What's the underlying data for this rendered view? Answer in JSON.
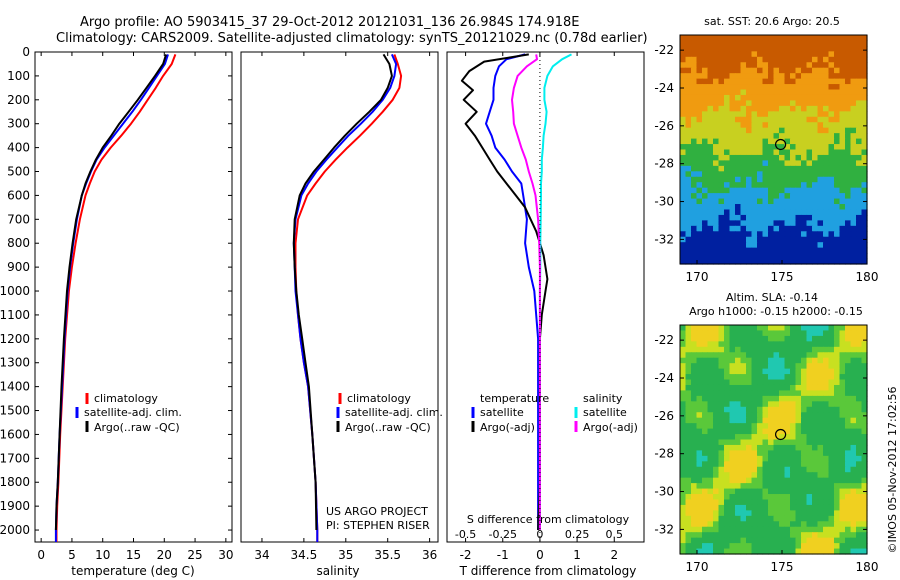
{
  "header": {
    "line1": "Argo profile: AO 5903415_37 29-Oct-2012 20121031_136 26.984S 174.918E",
    "line2": "Climatology: CARS2009. Satellite-adjusted climatology: synTS_20121029.nc (0.78d earlier)"
  },
  "credits": {
    "project": "US ARGO PROJECT",
    "pi": "PI: STEPHEN RISER",
    "side": "©IMOS 05-Nov-2012 17:02:56"
  },
  "colors": {
    "climatology": "#ff0000",
    "satellite": "#0000ff",
    "argo": "#000000",
    "sal_satellite": "#00eeee",
    "sal_argo": "#ff00ff"
  },
  "chart_data": [
    {
      "type": "line",
      "id": "temperature",
      "xlabel": "temperature (deg C)",
      "ylabel": "",
      "xlim": [
        -1,
        31
      ],
      "ylim": [
        2050,
        0
      ],
      "xticks": [
        0,
        5,
        10,
        15,
        20,
        25,
        30
      ],
      "yticks": [
        0,
        100,
        200,
        300,
        400,
        500,
        600,
        700,
        800,
        900,
        1000,
        1100,
        1200,
        1300,
        1400,
        1500,
        1600,
        1700,
        1800,
        1900,
        2000
      ],
      "legend": [
        "climatology",
        "satellite-adj. clim.",
        "Argo(..raw -QC)"
      ],
      "legend_position": "lower-center",
      "series": [
        {
          "name": "climatology",
          "color": "#ff0000",
          "y": [
            10,
            50,
            100,
            150,
            200,
            250,
            300,
            350,
            400,
            450,
            500,
            550,
            600,
            700,
            800,
            900,
            1000,
            1200,
            1400,
            1600,
            1800,
            1900,
            2000,
            2050
          ],
          "values": [
            21.8,
            21.2,
            19.8,
            18.6,
            17.3,
            16.0,
            14.6,
            13.0,
            11.3,
            9.8,
            8.7,
            7.9,
            7.2,
            6.3,
            5.6,
            5.0,
            4.5,
            3.9,
            3.5,
            3.1,
            2.8,
            2.6,
            2.5,
            2.5
          ]
        },
        {
          "name": "satellite-adj. clim.",
          "color": "#0000ff",
          "y": [
            10,
            50,
            100,
            150,
            200,
            250,
            300,
            350,
            400,
            450,
            500,
            550,
            600,
            700,
            800,
            900,
            1000,
            1200,
            1400,
            1600,
            1800,
            1900,
            2000,
            2050
          ],
          "values": [
            20.6,
            20.1,
            18.8,
            17.5,
            16.2,
            14.8,
            13.3,
            11.8,
            10.3,
            9.0,
            8.1,
            7.3,
            6.6,
            5.8,
            5.2,
            4.7,
            4.3,
            3.8,
            3.4,
            3.0,
            2.7,
            2.5,
            2.4,
            2.4
          ]
        },
        {
          "name": "Argo(..raw -QC)",
          "color": "#000000",
          "y": [
            10,
            50,
            100,
            150,
            200,
            250,
            300,
            350,
            400,
            450,
            500,
            550,
            600,
            700,
            800,
            900,
            1000,
            1200,
            1400,
            1600,
            1800,
            1900,
            2000
          ],
          "values": [
            20.3,
            19.8,
            18.5,
            17.1,
            15.7,
            14.2,
            12.7,
            11.4,
            10.0,
            8.9,
            8.0,
            7.2,
            6.6,
            5.7,
            5.1,
            4.6,
            4.2,
            3.7,
            3.3,
            3.0,
            2.7,
            2.5,
            2.4
          ]
        }
      ]
    },
    {
      "type": "line",
      "id": "salinity",
      "xlabel": "salinity",
      "ylabel": "",
      "xlim": [
        33.75,
        36.1
      ],
      "ylim": [
        2050,
        0
      ],
      "xticks": [
        34,
        34.5,
        35,
        35.5,
        36
      ],
      "legend": [
        "climatology",
        "satellite-adj. clim.",
        "Argo(..raw -QC)"
      ],
      "legend_position": "lower-center",
      "series": [
        {
          "name": "climatology",
          "color": "#ff0000",
          "y": [
            10,
            50,
            100,
            150,
            200,
            250,
            300,
            350,
            400,
            450,
            500,
            550,
            600,
            700,
            800,
            900,
            1000,
            1100,
            1200,
            1300,
            1400,
            1600,
            1800,
            2000,
            2050
          ],
          "values": [
            35.58,
            35.62,
            35.66,
            35.64,
            35.56,
            35.44,
            35.31,
            35.17,
            35.02,
            34.88,
            34.75,
            34.64,
            34.54,
            34.43,
            34.4,
            34.4,
            34.41,
            34.43,
            34.46,
            34.5,
            34.55,
            34.6,
            34.64,
            34.66,
            34.66
          ]
        },
        {
          "name": "satellite-adj. clim.",
          "color": "#0000ff",
          "y": [
            10,
            50,
            100,
            150,
            200,
            250,
            300,
            350,
            400,
            450,
            500,
            550,
            600,
            700,
            800,
            900,
            1000,
            1100,
            1200,
            1300,
            1400,
            1600,
            1800,
            2000,
            2050
          ],
          "values": [
            35.55,
            35.6,
            35.58,
            35.53,
            35.44,
            35.32,
            35.18,
            35.03,
            34.9,
            34.77,
            34.65,
            34.55,
            34.47,
            34.4,
            34.38,
            34.39,
            34.4,
            34.43,
            34.46,
            34.5,
            34.55,
            34.6,
            34.64,
            34.66,
            34.66
          ]
        },
        {
          "name": "Argo(..raw -QC)",
          "color": "#000000",
          "y": [
            10,
            50,
            100,
            150,
            200,
            250,
            300,
            350,
            400,
            450,
            500,
            550,
            600,
            700,
            800,
            900,
            1000,
            1100,
            1200,
            1300,
            1400,
            1600,
            1800,
            2000
          ],
          "values": [
            35.45,
            35.52,
            35.55,
            35.5,
            35.42,
            35.28,
            35.13,
            34.99,
            34.86,
            34.74,
            34.62,
            34.52,
            34.45,
            34.39,
            34.38,
            34.39,
            34.41,
            34.44,
            34.48,
            34.52,
            34.56,
            34.6,
            34.64,
            34.65
          ]
        }
      ]
    },
    {
      "type": "line",
      "id": "difference",
      "xlabel": "T difference from climatology",
      "title": "S difference from climatology",
      "xlim": [
        -2.5,
        2.8
      ],
      "ylim": [
        2050,
        0
      ],
      "xticks": [
        -2,
        -1,
        0,
        1,
        2
      ],
      "top_xtick_labels": [
        "-0.5",
        "-0.25",
        "0",
        "0.25",
        "0.5"
      ],
      "top_xtick_positions": [
        -2,
        -1,
        0,
        1,
        2
      ],
      "zero_line": "dotted",
      "legend": [
        "temperature",
        "satellite",
        "Argo(-adj)",
        "salinity",
        "satellite",
        "Argo(-adj)"
      ],
      "legend_position": "lower-center",
      "series": [
        {
          "name": "temperature satellite",
          "color": "#0000ff",
          "y": [
            10,
            30,
            60,
            100,
            150,
            200,
            250,
            300,
            350,
            400,
            450,
            500,
            550,
            600,
            700,
            800,
            900,
            1000,
            1100,
            1200,
            1300,
            1400,
            1600,
            1800,
            2000
          ],
          "values": [
            -0.4,
            -0.9,
            -1.1,
            -1.2,
            -1.25,
            -1.25,
            -1.35,
            -1.45,
            -1.3,
            -1.2,
            -0.95,
            -0.75,
            -0.5,
            -0.45,
            -0.35,
            -0.4,
            -0.3,
            -0.15,
            -0.1,
            -0.05,
            -0.05,
            -0.05,
            -0.05,
            -0.05,
            -0.05
          ]
        },
        {
          "name": "temperature Argo(-adj)",
          "color": "#000000",
          "y": [
            10,
            40,
            80,
            120,
            160,
            200,
            250,
            300,
            350,
            400,
            450,
            500,
            550,
            600,
            650,
            700,
            750,
            800,
            850,
            900,
            950,
            1000,
            1100,
            1200,
            1400,
            1600,
            1800,
            2000
          ],
          "values": [
            -0.3,
            -1.5,
            -1.9,
            -2.1,
            -1.8,
            -2.05,
            -1.7,
            -2.0,
            -1.75,
            -1.55,
            -1.35,
            -1.15,
            -0.9,
            -0.65,
            -0.4,
            -0.25,
            -0.1,
            0.0,
            0.1,
            0.15,
            0.2,
            0.15,
            0.05,
            0.0,
            0.0,
            0.0,
            0.0,
            -0.05
          ]
        },
        {
          "name": "salinity satellite",
          "color": "#00eeee",
          "y": [
            10,
            30,
            60,
            100,
            150,
            200,
            250,
            300,
            350,
            400,
            450,
            500,
            550,
            600,
            700,
            800,
            900,
            1000,
            1200,
            1400,
            1600,
            1800,
            2000
          ],
          "values": [
            0.85,
            0.6,
            0.35,
            0.2,
            0.12,
            0.12,
            0.18,
            0.15,
            0.1,
            0.08,
            0.05,
            0.05,
            0.03,
            0.03,
            0.02,
            0.01,
            0.01,
            0.0,
            0.0,
            0.0,
            0.0,
            0.0,
            0.0
          ]
        },
        {
          "name": "salinity Argo(-adj)",
          "color": "#ff00ff",
          "y": [
            10,
            30,
            60,
            100,
            150,
            200,
            250,
            300,
            350,
            400,
            450,
            500,
            550,
            600,
            700,
            800,
            900,
            1000,
            1200,
            1400,
            1600,
            1800,
            2000
          ],
          "values": [
            -0.1,
            -0.08,
            -0.35,
            -0.6,
            -0.7,
            -0.75,
            -0.72,
            -0.7,
            -0.6,
            -0.5,
            -0.38,
            -0.3,
            -0.2,
            -0.12,
            -0.05,
            -0.02,
            0.0,
            0.0,
            0.0,
            0.0,
            0.0,
            0.0,
            0.0
          ]
        }
      ]
    },
    {
      "type": "heatmap",
      "id": "sst_map",
      "title": "sat. SST: 20.6 Argo: 20.5",
      "xlim": [
        169,
        180
      ],
      "ylim": [
        -33.3,
        -21.2
      ],
      "xticks": [
        170,
        175,
        180
      ],
      "yticks": [
        -22,
        -24,
        -26,
        -28,
        -30,
        -32
      ],
      "marker": {
        "lon": 174.918,
        "lat": -26.984
      },
      "colors_top_to_bottom": [
        "#c85a00",
        "#f09b10",
        "#c8d020",
        "#30b040",
        "#20a0e0",
        "#0020a0"
      ]
    },
    {
      "type": "heatmap",
      "id": "sla_map",
      "title": "Altim. SLA: -0.14",
      "subtitle": "Argo h1000: -0.15 h2000: -0.15",
      "xlim": [
        169,
        180
      ],
      "ylim": [
        -33.3,
        -21.2
      ],
      "xticks": [
        170,
        175,
        180
      ],
      "yticks": [
        -22,
        -24,
        -26,
        -28,
        -30,
        -32
      ],
      "marker": {
        "lon": 174.918,
        "lat": -26.984
      },
      "colors": [
        "#28b050",
        "#5ac83a",
        "#c8e020",
        "#f0d020",
        "#20c8b0"
      ]
    }
  ]
}
